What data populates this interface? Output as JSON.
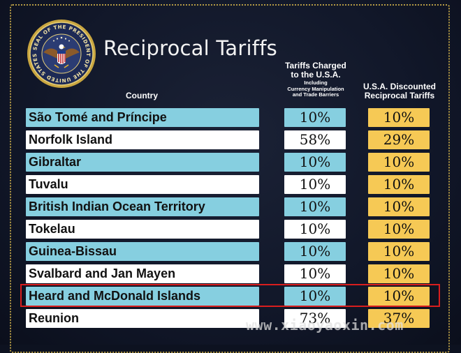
{
  "header": {
    "title": "Reciprocal Tariffs",
    "seal_text": "SEAL OF THE PRESIDENT OF THE UNITED STATES"
  },
  "columns": {
    "country": "Country",
    "charged_main_1": "Tariffs Charged",
    "charged_main_2": "to the U.S.A.",
    "charged_sub_1": "Including",
    "charged_sub_2": "Currency Manipulation",
    "charged_sub_3": "and Trade Barriers",
    "discount_1": "U.S.A. Discounted",
    "discount_2": "Reciprocal Tariffs"
  },
  "rows": [
    {
      "country": "São Tomé and Príncipe",
      "charged": "10%",
      "discounted": "10%"
    },
    {
      "country": "Norfolk Island",
      "charged": "58%",
      "discounted": "29%"
    },
    {
      "country": "Gibraltar",
      "charged": "10%",
      "discounted": "10%"
    },
    {
      "country": "Tuvalu",
      "charged": "10%",
      "discounted": "10%"
    },
    {
      "country": "British Indian Ocean Territory",
      "charged": "10%",
      "discounted": "10%"
    },
    {
      "country": "Tokelau",
      "charged": "10%",
      "discounted": "10%"
    },
    {
      "country": "Guinea-Bissau",
      "charged": "10%",
      "discounted": "10%"
    },
    {
      "country": "Svalbard and Jan Mayen",
      "charged": "10%",
      "discounted": "10%"
    },
    {
      "country": "Heard and McDonald Islands",
      "charged": "10%",
      "discounted": "10%"
    },
    {
      "country": "Reunion",
      "charged": "73%",
      "discounted": "37%"
    }
  ],
  "watermark": "www.xiaoyaoxin.com",
  "colors": {
    "background": "#111729",
    "row_blue": "#86cfe0",
    "row_white": "#ffffff",
    "discount_gold": "#f6c955",
    "highlight_red": "#d91e1e"
  }
}
